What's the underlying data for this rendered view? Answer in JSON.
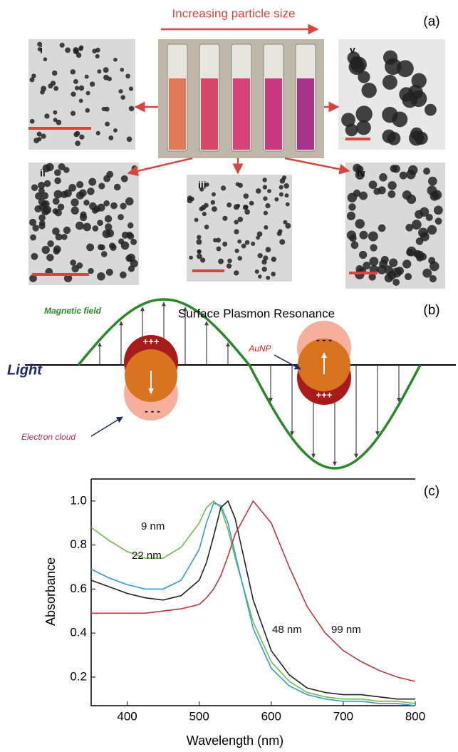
{
  "panel_a": {
    "label": "(a)",
    "title": "Increasing particle size",
    "images": [
      "i",
      "ii",
      "iii",
      "iv",
      "v"
    ]
  },
  "panel_b": {
    "label": "(b)",
    "title": "Surface Plasmon Resonance",
    "field": "Magnetic field",
    "light": "Light",
    "particle": "AuNP",
    "cloud": "Electron cloud",
    "positive": "+++",
    "negative": "- - -"
  },
  "chart_data": {
    "type": "line",
    "label": "(c)",
    "x_label": "Wavelength (nm)",
    "y_label": "Absorbance",
    "x": [
      350,
      375,
      400,
      425,
      450,
      475,
      500,
      510,
      520,
      530,
      540,
      550,
      575,
      600,
      625,
      650,
      675,
      700,
      725,
      750,
      775,
      800
    ],
    "series": [
      {
        "name": "9 nm",
        "color": "#6cbf4a",
        "values": [
          0.88,
          0.82,
          0.77,
          0.74,
          0.74,
          0.79,
          0.9,
          0.97,
          1.0,
          0.97,
          0.87,
          0.74,
          0.45,
          0.27,
          0.18,
          0.13,
          0.11,
          0.1,
          0.1,
          0.09,
          0.09,
          0.08
        ]
      },
      {
        "name": "22 nm",
        "color": "#2f9fd0",
        "values": [
          0.69,
          0.65,
          0.62,
          0.6,
          0.6,
          0.64,
          0.78,
          0.9,
          0.99,
          0.98,
          0.9,
          0.76,
          0.42,
          0.24,
          0.16,
          0.12,
          0.1,
          0.09,
          0.09,
          0.08,
          0.08,
          0.07
        ]
      },
      {
        "name": "48 nm",
        "color": "#222222",
        "values": [
          0.64,
          0.61,
          0.58,
          0.56,
          0.55,
          0.57,
          0.64,
          0.72,
          0.84,
          0.97,
          1.0,
          0.92,
          0.55,
          0.32,
          0.21,
          0.15,
          0.13,
          0.12,
          0.12,
          0.11,
          0.1,
          0.1
        ]
      },
      {
        "name": "99 nm",
        "color": "#c0393b",
        "values": [
          0.49,
          0.49,
          0.49,
          0.49,
          0.5,
          0.51,
          0.53,
          0.56,
          0.6,
          0.66,
          0.75,
          0.85,
          1.0,
          0.9,
          0.7,
          0.52,
          0.4,
          0.32,
          0.27,
          0.23,
          0.2,
          0.18
        ]
      }
    ],
    "xlim": [
      350,
      800
    ],
    "ylim": [
      0.07,
      1.1
    ],
    "xticks": [
      400,
      500,
      600,
      700,
      800
    ],
    "yticks": [
      0.2,
      0.4,
      0.6,
      0.8,
      {
        "value": 1,
        "label": "1.0"
      }
    ]
  }
}
